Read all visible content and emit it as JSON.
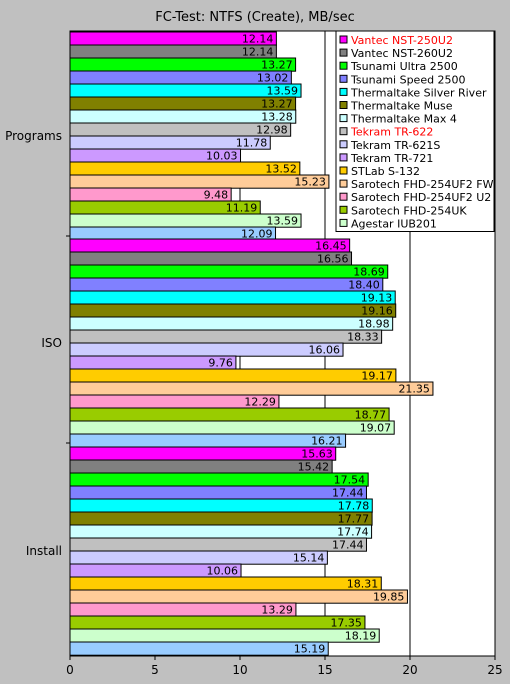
{
  "chart_data": {
    "type": "bar",
    "orientation": "horizontal",
    "title": "FC-Test: NTFS (Create), MB/sec",
    "xlabel": "",
    "ylabel": "",
    "xlim": [
      0,
      25
    ],
    "xticks": [
      0,
      5,
      10,
      15,
      20,
      25
    ],
    "grid": true,
    "legend_position": "top-right",
    "categories": [
      "Programs",
      "ISO",
      "Install"
    ],
    "series": [
      {
        "name": "Vantec NST-250U2",
        "color": "#ff00ff",
        "legend_color": "#ff0000",
        "values": [
          12.14,
          16.45,
          15.63
        ]
      },
      {
        "name": "Vantec NST-260U2",
        "color": "#808080",
        "legend_color": "#000000",
        "values": [
          12.14,
          16.56,
          15.42
        ]
      },
      {
        "name": "Tsunami Ultra 2500",
        "color": "#00ff00",
        "legend_color": "#000000",
        "values": [
          13.27,
          18.69,
          17.54
        ]
      },
      {
        "name": "Tsunami Speed 2500",
        "color": "#8080ff",
        "legend_color": "#000000",
        "values": [
          13.02,
          18.4,
          17.44
        ]
      },
      {
        "name": "Thermaltake Silver River",
        "color": "#00ffff",
        "legend_color": "#000000",
        "values": [
          13.59,
          19.13,
          17.78
        ]
      },
      {
        "name": "Thermaltake Muse",
        "color": "#808000",
        "legend_color": "#000000",
        "values": [
          13.27,
          19.16,
          17.77
        ]
      },
      {
        "name": "Thermaltake Max 4",
        "color": "#ccffff",
        "legend_color": "#000000",
        "values": [
          13.28,
          18.98,
          17.74
        ]
      },
      {
        "name": "Tekram TR-622",
        "color": "#c0c0c0",
        "legend_color": "#ff0000",
        "values": [
          12.98,
          18.33,
          17.44
        ]
      },
      {
        "name": "Tekram TR-621S",
        "color": "#ccccff",
        "legend_color": "#000000",
        "values": [
          11.78,
          16.06,
          15.14
        ]
      },
      {
        "name": "Tekram TR-721",
        "color": "#cc99ff",
        "legend_color": "#000000",
        "values": [
          10.03,
          9.76,
          10.06
        ]
      },
      {
        "name": "STLab S-132",
        "color": "#ffcc00",
        "legend_color": "#000000",
        "values": [
          13.52,
          19.17,
          18.31
        ]
      },
      {
        "name": "Sarotech FHD-254UF2 FW",
        "color": "#ffcc99",
        "legend_color": "#000000",
        "values": [
          15.23,
          21.35,
          19.85
        ]
      },
      {
        "name": "Sarotech FHD-254UF2 U2",
        "color": "#ff99cc",
        "legend_color": "#000000",
        "values": [
          9.48,
          12.29,
          13.29
        ]
      },
      {
        "name": "Sarotech FHD-254UK",
        "color": "#99cc00",
        "legend_color": "#000000",
        "values": [
          11.19,
          18.77,
          17.35
        ]
      },
      {
        "name": "Agestar IUB201",
        "color": "#ccffcc",
        "legend_color": "#000000",
        "values": [
          13.59,
          19.07,
          18.19
        ]
      },
      {
        "name": "",
        "color": "#99ccff",
        "legend_color": "#000000",
        "values": [
          12.09,
          16.21,
          15.19
        ]
      }
    ]
  }
}
